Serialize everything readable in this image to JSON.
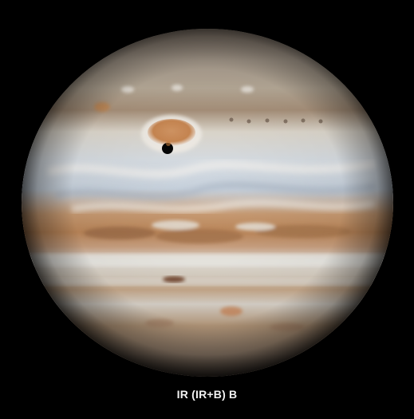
{
  "image": {
    "caption": "IR (IR+B) B",
    "background_color": "#000000",
    "planet_colors": {
      "limb": "#3a2f27",
      "zone_light": "#e8e4dc",
      "belt_tan": "#b98f66",
      "belt_orange": "#c4844f",
      "zone_blue": "#c9d3de",
      "spot_orange": "#d9935a",
      "shadow": "#050505"
    }
  }
}
